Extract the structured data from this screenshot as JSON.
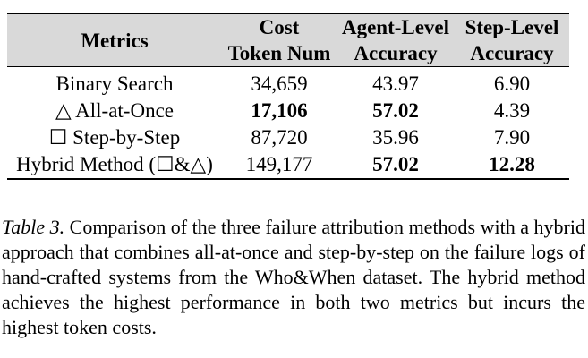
{
  "table": {
    "headers": [
      {
        "line1": "Metrics",
        "line2": ""
      },
      {
        "line1": "Cost",
        "line2": "Token Num"
      },
      {
        "line1": "Agent-Level",
        "line2": "Accuracy"
      },
      {
        "line1": "Step-Level",
        "line2": "Accuracy"
      }
    ],
    "rows": [
      {
        "method": "Binary Search",
        "cost": "34,659",
        "agent": "43.97",
        "step": "6.90",
        "bold": []
      },
      {
        "method": "△ All-at-Once",
        "cost": "17,106",
        "agent": "57.02",
        "step": "4.39",
        "bold": [
          "cost",
          "agent"
        ]
      },
      {
        "method": "☐ Step-by-Step",
        "cost": "87,720",
        "agent": "35.96",
        "step": "7.90",
        "bold": []
      },
      {
        "method": "Hybrid Method (☐&△)",
        "cost": "149,177",
        "agent": "57.02",
        "step": "12.28",
        "bold": [
          "agent",
          "step"
        ]
      }
    ]
  },
  "caption": {
    "label": "Table 3.",
    "text": " Comparison of the three failure attribution methods with a hybrid approach that combines all-at-once and step-by-step on the failure logs of hand-crafted systems from the Who&When dataset. The hybrid method achieves the highest performance in both two metrics but incurs the highest token costs."
  }
}
